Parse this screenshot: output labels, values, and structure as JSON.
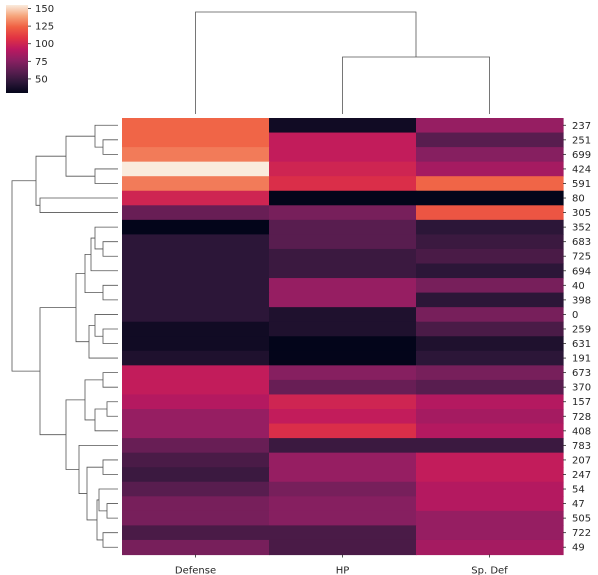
{
  "chart_data": {
    "type": "heatmap",
    "title": "",
    "xlabel": "",
    "ylabel": "",
    "columns": [
      "Defense",
      "HP",
      "Sp. Def"
    ],
    "rows": [
      "237",
      "251",
      "699",
      "424",
      "591",
      "80",
      "305",
      "352",
      "683",
      "725",
      "694",
      "40",
      "398",
      "0",
      "259",
      "631",
      "191",
      "673",
      "370",
      "157",
      "728",
      "408",
      "783",
      "207",
      "247",
      "54",
      "47",
      "505",
      "722",
      "49"
    ],
    "values": [
      [
        125,
        35,
        80
      ],
      [
        125,
        95,
        60
      ],
      [
        130,
        95,
        75
      ],
      [
        155,
        100,
        85
      ],
      [
        130,
        105,
        125
      ],
      [
        100,
        30,
        30
      ],
      [
        65,
        70,
        120
      ],
      [
        30,
        60,
        45
      ],
      [
        45,
        60,
        50
      ],
      [
        45,
        50,
        55
      ],
      [
        45,
        50,
        45
      ],
      [
        45,
        80,
        70
      ],
      [
        45,
        80,
        45
      ],
      [
        45,
        40,
        70
      ],
      [
        35,
        40,
        55
      ],
      [
        35,
        30,
        40
      ],
      [
        40,
        30,
        45
      ],
      [
        95,
        75,
        70
      ],
      [
        95,
        65,
        60
      ],
      [
        90,
        100,
        90
      ],
      [
        80,
        95,
        85
      ],
      [
        80,
        105,
        90
      ],
      [
        65,
        50,
        50
      ],
      [
        55,
        80,
        95
      ],
      [
        50,
        80,
        95
      ],
      [
        60,
        70,
        90
      ],
      [
        70,
        75,
        90
      ],
      [
        70,
        75,
        80
      ],
      [
        55,
        55,
        80
      ],
      [
        70,
        55,
        85
      ]
    ],
    "colorbar": {
      "min": 30,
      "max": 155,
      "ticks": [
        50,
        75,
        100,
        125,
        150
      ]
    },
    "colormap": [
      "#03051a",
      "#2e1739",
      "#5c1e51",
      "#8c1f62",
      "#bc1860",
      "#e13343",
      "#f06043",
      "#f6a47b",
      "#faebdd"
    ],
    "dendrogram_color": "#555555"
  }
}
